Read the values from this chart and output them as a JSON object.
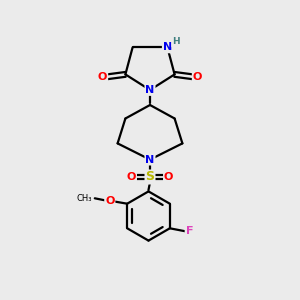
{
  "bg_color": "#ebebeb",
  "bond_color": "#000000",
  "atom_colors": {
    "N": "#0000ee",
    "O": "#ff0000",
    "S": "#b8b800",
    "F": "#dd44bb",
    "H": "#408080",
    "C": "#000000"
  },
  "figsize": [
    3.0,
    3.0
  ],
  "dpi": 100,
  "lw": 1.6
}
